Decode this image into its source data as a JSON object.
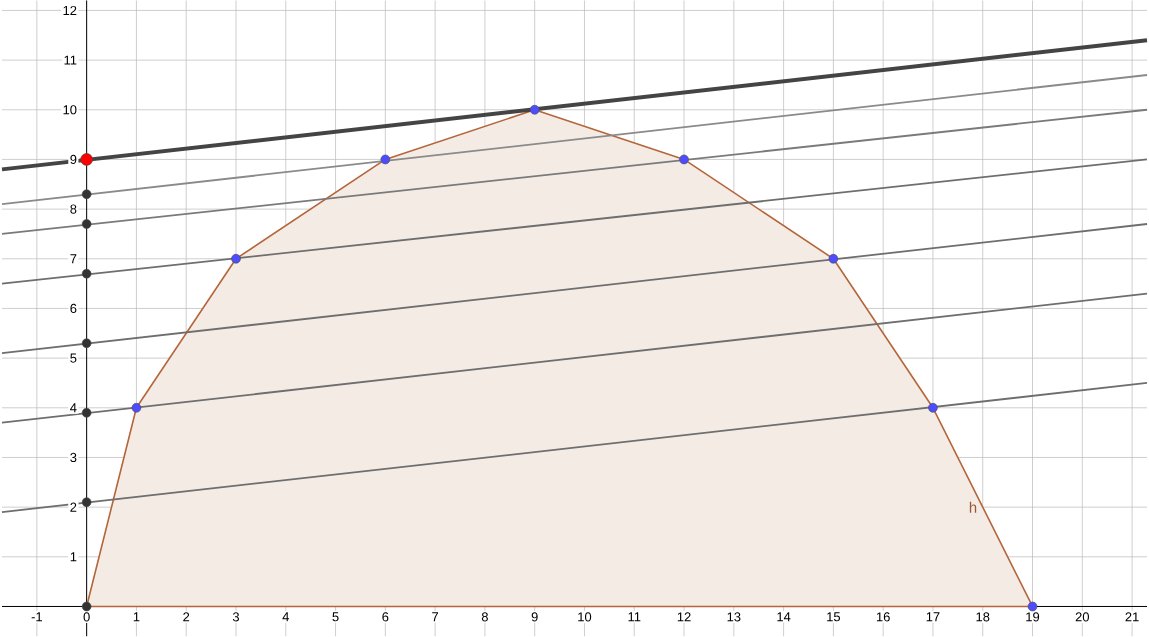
{
  "chart_data": {
    "type": "line",
    "xlim": [
      -1.7,
      21.3
    ],
    "ylim": [
      -0.6,
      12.2
    ],
    "xticks": [
      -1,
      0,
      1,
      2,
      3,
      4,
      5,
      6,
      7,
      8,
      9,
      10,
      11,
      12,
      13,
      14,
      15,
      16,
      17,
      18,
      19,
      20,
      21
    ],
    "yticks": [
      1,
      2,
      3,
      4,
      5,
      6,
      7,
      8,
      9,
      10,
      11,
      12
    ],
    "grid": true,
    "series": [
      {
        "type": "area",
        "color": "#b5653a",
        "x": [
          0,
          1,
          3,
          6,
          9,
          12,
          15,
          17,
          19
        ],
        "values": [
          0,
          4,
          7,
          9,
          10,
          9,
          7,
          4,
          0
        ]
      },
      {
        "type": "line",
        "color": "#444444",
        "x": [
          -1.7,
          21.3
        ],
        "values": [
          8.8,
          11.4
        ]
      },
      {
        "type": "line",
        "color": "#8a8a8a",
        "x": [
          -1.7,
          21.3
        ],
        "values": [
          8.1,
          10.7
        ]
      },
      {
        "type": "line",
        "color": "#7a7a7a",
        "x": [
          -1.7,
          21.3
        ],
        "values": [
          7.5,
          10.0
        ]
      },
      {
        "type": "line",
        "color": "#6e6e6e",
        "x": [
          -1.7,
          21.3
        ],
        "values": [
          6.5,
          9.0
        ]
      },
      {
        "type": "line",
        "color": "#6e6e6e",
        "x": [
          -1.7,
          21.3
        ],
        "values": [
          5.1,
          7.7
        ]
      },
      {
        "type": "line",
        "color": "#6e6e6e",
        "x": [
          -1.7,
          21.3
        ],
        "values": [
          3.7,
          6.3
        ]
      },
      {
        "type": "line",
        "color": "#6e6e6e",
        "x": [
          -1.7,
          21.3
        ],
        "values": [
          1.9,
          4.5
        ]
      },
      {
        "type": "scatter",
        "color": "#4d4dff",
        "x": [
          1,
          3,
          6,
          9,
          12,
          15,
          17,
          19
        ],
        "values": [
          4,
          7,
          9,
          10,
          9,
          7,
          4,
          0
        ]
      },
      {
        "type": "scatter",
        "color": "#333333",
        "x": [
          0,
          0,
          0,
          0,
          0,
          0,
          0
        ],
        "values": [
          0,
          8.3,
          7.7,
          6.7,
          5.3,
          3.9,
          2.1
        ]
      },
      {
        "type": "scatter",
        "color": "#ff0000",
        "x": [
          0
        ],
        "values": [
          9
        ]
      }
    ],
    "annotations": [
      "h"
    ]
  }
}
